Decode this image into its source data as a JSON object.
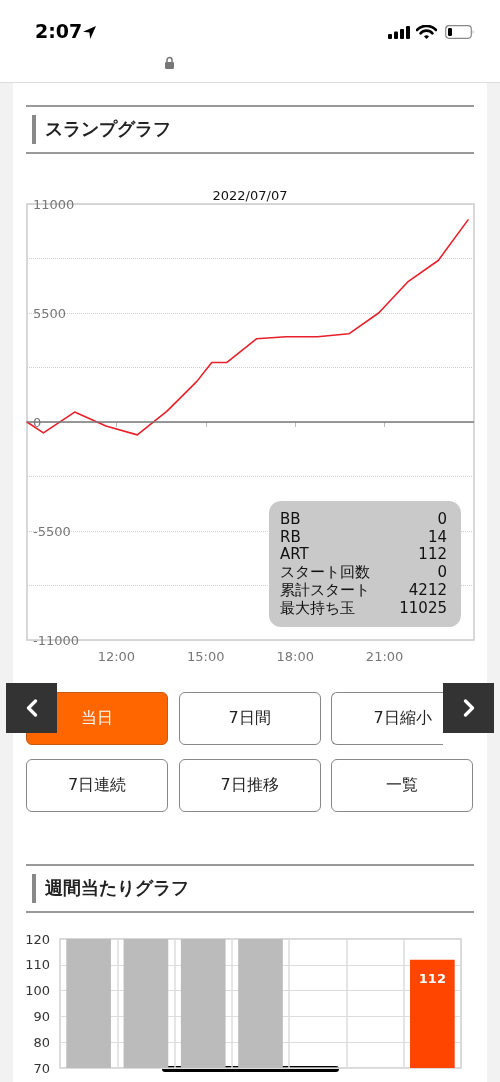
{
  "chart_data": [
    {
      "type": "line",
      "title": "スランプグラフ",
      "subtitle": "2022/07/07",
      "x": [
        9,
        9.55,
        10.6,
        11.65,
        12.7,
        13.7,
        14.7,
        15.2,
        15.7,
        16.7,
        17.7,
        18.75,
        19.8,
        20.8,
        21.8,
        22.8,
        23.8
      ],
      "series": [
        {
          "color": "#e8202a",
          "values": [
            0,
            -550,
            500,
            -200,
            -650,
            550,
            2050,
            3000,
            3000,
            4200,
            4300,
            4300,
            4450,
            5500,
            7100,
            8150,
            10200
          ]
        }
      ],
      "xlim": [
        9,
        24
      ],
      "xticks": [
        {
          "value": 12,
          "label": "12:00"
        },
        {
          "value": 15,
          "label": "15:00"
        },
        {
          "value": 18,
          "label": "18:00"
        },
        {
          "value": 21,
          "label": "21:00"
        }
      ],
      "ylim": [
        -11000,
        11000
      ],
      "yticks": [
        -11000,
        {
          "value": -8250,
          "label": null
        },
        -5500,
        {
          "value": -2750,
          "label": null
        },
        0,
        {
          "value": 2750,
          "label": null
        },
        5500,
        {
          "value": 8250,
          "label": null
        },
        11000
      ],
      "ref_lines": [
        {
          "axis": "y",
          "value": 0,
          "color": "#777777"
        }
      ],
      "grid": "y",
      "marker": "none",
      "line_style": "solid",
      "annotations": [
        "BB 0",
        "RB 14",
        "ART 112",
        "スタート回数 0",
        "累計スタート 4212",
        "最大持ち玉 11025",
        "当日",
        "7日間",
        "7日縮小",
        "7日連続",
        "7日推移",
        "一覧",
        "2:07"
      ]
    },
    {
      "type": "bar",
      "title": "週間当たりグラフ",
      "categories": [
        null,
        null,
        null,
        null,
        null,
        null,
        null
      ],
      "values": [
        120,
        120,
        120,
        120,
        null,
        null,
        112
      ],
      "colors": [
        "#bbbbbb",
        "#bbbbbb",
        "#bbbbbb",
        "#bbbbbb",
        null,
        null,
        "#ff4500"
      ],
      "value_labels": [
        null,
        null,
        null,
        null,
        null,
        null,
        "112"
      ],
      "ylim": [
        70,
        120
      ],
      "yticks": [
        70,
        80,
        90,
        100,
        110,
        120
      ],
      "grid": true,
      "tick_labels": "y"
    }
  ]
}
